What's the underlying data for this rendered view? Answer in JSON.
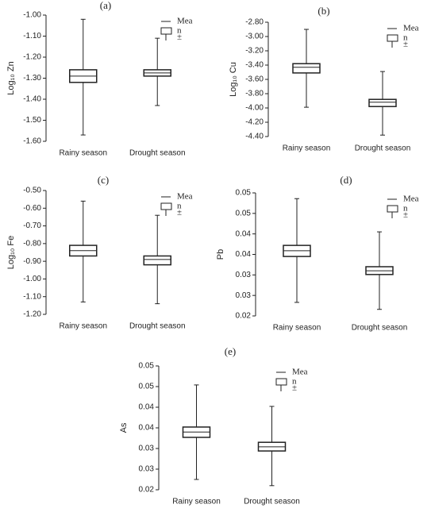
{
  "chart_data": [
    {
      "type": "box",
      "title": "(a)",
      "ylabel": "Log₁₀ Zn",
      "categories": [
        "Rainy season",
        "Drought season"
      ],
      "boxes": [
        {
          "min": -1.57,
          "q1": -1.32,
          "median": -1.29,
          "q3": -1.26,
          "max": -1.02
        },
        {
          "min": -1.43,
          "q1": -1.29,
          "median": -1.275,
          "q3": -1.26,
          "max": -1.11
        }
      ],
      "legend": [
        "Mea",
        "n",
        "±"
      ],
      "ylim": [
        -1.6,
        -1.0
      ],
      "yticks": [
        {
          "value": -1.6,
          "label": "-1.60"
        },
        {
          "value": -1.5,
          "label": "-1.50"
        },
        {
          "value": -1.4,
          "label": "-1.40"
        },
        {
          "value": -1.3,
          "label": "-1.30"
        },
        {
          "value": -1.2,
          "label": "-1.20"
        },
        {
          "value": -1.1,
          "label": "-1.10"
        },
        {
          "value": -1.0,
          "label": "-1.00"
        }
      ]
    },
    {
      "type": "box",
      "title": "(b)",
      "ylabel": "Log₁₀ Cu",
      "categories": [
        "Rainy season",
        "Drought season"
      ],
      "boxes": [
        {
          "min": -3.99,
          "q1": -3.51,
          "median": -3.43,
          "q3": -3.38,
          "max": -2.9
        },
        {
          "min": -4.38,
          "q1": -3.98,
          "median": -3.92,
          "q3": -3.88,
          "max": -3.49
        }
      ],
      "legend": [
        "Mea",
        "n",
        "±"
      ],
      "ylim": [
        -4.4,
        -2.8
      ],
      "yticks": [
        {
          "value": -4.4,
          "label": "-4.40"
        },
        {
          "value": -4.2,
          "label": "-4.20"
        },
        {
          "value": -4.0,
          "label": "-4.00"
        },
        {
          "value": -3.8,
          "label": "-3.80"
        },
        {
          "value": -3.6,
          "label": "-3.60"
        },
        {
          "value": -3.4,
          "label": "-3.40"
        },
        {
          "value": -3.2,
          "label": "-3.20"
        },
        {
          "value": -3.0,
          "label": "-3.00"
        },
        {
          "value": -2.8,
          "label": "-2.80"
        }
      ]
    },
    {
      "type": "box",
      "title": "(c)",
      "ylabel": "Log₁₀ Fe",
      "categories": [
        "Rainy season",
        "Drought season"
      ],
      "boxes": [
        {
          "min": -1.13,
          "q1": -0.87,
          "median": -0.84,
          "q3": -0.81,
          "max": -0.56
        },
        {
          "min": -1.14,
          "q1": -0.92,
          "median": -0.89,
          "q3": -0.87,
          "max": -0.64
        }
      ],
      "legend": [
        "Mea",
        "n",
        "±"
      ],
      "ylim": [
        -1.2,
        -0.5
      ],
      "yticks": [
        {
          "value": -1.2,
          "label": "-1.20"
        },
        {
          "value": -1.1,
          "label": "-1.10"
        },
        {
          "value": -1.0,
          "label": "-1.00"
        },
        {
          "value": -0.9,
          "label": "-0.90"
        },
        {
          "value": -0.8,
          "label": "-0.80"
        },
        {
          "value": -0.7,
          "label": "-0.70"
        },
        {
          "value": -0.6,
          "label": "-0.60"
        },
        {
          "value": -0.5,
          "label": "-0.50"
        }
      ]
    },
    {
      "type": "box",
      "title": "(d)",
      "ylabel": "Pb",
      "categories": [
        "Rainy season",
        "Drought season"
      ],
      "boxes": [
        {
          "min": 0.0233,
          "q1": 0.0345,
          "median": 0.0359,
          "q3": 0.0372,
          "max": 0.0486
        },
        {
          "min": 0.0216,
          "q1": 0.0301,
          "median": 0.031,
          "q3": 0.032,
          "max": 0.0405
        }
      ],
      "legend": [
        "Mea",
        "n",
        "±"
      ],
      "ylim": [
        0.02,
        0.05
      ],
      "yticks": [
        0.02,
        {
          "value": 0.025,
          "label": "0.03"
        },
        0.03,
        {
          "value": 0.035,
          "label": "0.04"
        },
        0.04,
        {
          "value": 0.045,
          "label": "0.05"
        },
        0.05
      ]
    },
    {
      "type": "box",
      "title": "(e)",
      "ylabel": "As",
      "categories": [
        "Rainy season",
        "Drought season"
      ],
      "boxes": [
        {
          "min": 0.0225,
          "q1": 0.0327,
          "median": 0.034,
          "q3": 0.0352,
          "max": 0.0454
        },
        {
          "min": 0.021,
          "q1": 0.0294,
          "median": 0.0304,
          "q3": 0.0315,
          "max": 0.0402
        }
      ],
      "legend": [
        "Mea",
        "n",
        "±"
      ],
      "ylim": [
        0.02,
        0.05
      ],
      "yticks": [
        0.02,
        {
          "value": 0.025,
          "label": "0.03"
        },
        0.03,
        {
          "value": 0.035,
          "label": "0.04"
        },
        0.04,
        {
          "value": 0.045,
          "label": "0.05"
        },
        0.05
      ]
    }
  ]
}
